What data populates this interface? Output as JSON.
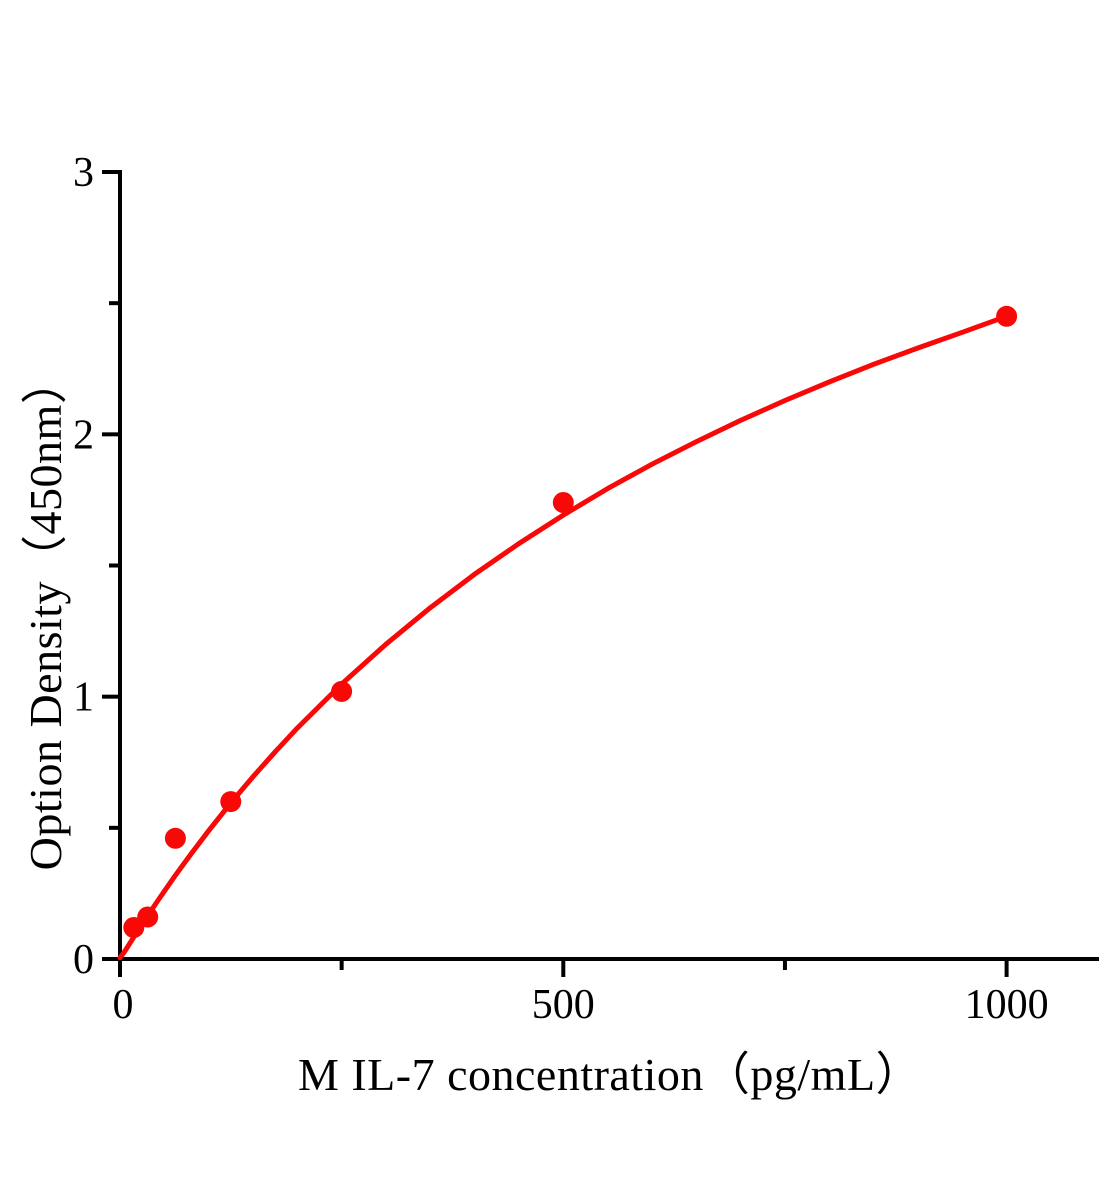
{
  "figure": {
    "background": "#ffffff",
    "text_color": "#000000"
  },
  "chart_data": {
    "type": "line",
    "subtype": "elisa-standard-curve-with-scatter-markers",
    "title": "",
    "xlabel": "M IL-7 concentration（pg/mL）",
    "ylabel": "Option Density（450nm）",
    "xlim": [
      0,
      1104
    ],
    "ylim": [
      0,
      3
    ],
    "grid": false,
    "legend": false,
    "axis_color": "#000000",
    "accent_color": "#f90808",
    "x_major_ticks": [
      0,
      500,
      1000
    ],
    "x_tick_labels": [
      "0",
      "500",
      "1000"
    ],
    "x_minor_ticks": [
      250,
      750
    ],
    "y_major_ticks": [
      0,
      1,
      2,
      3
    ],
    "y_tick_labels": [
      "0",
      "1",
      "2",
      "3"
    ],
    "y_minor_ticks": [
      0.5,
      1.5,
      2.5
    ],
    "series": [
      {
        "name": "standard points",
        "type": "scatter",
        "color": "#f90808",
        "marker": "circle",
        "marker_radius": 10.5,
        "points": [
          [
            15.6,
            0.12
          ],
          [
            31.2,
            0.16
          ],
          [
            62.5,
            0.46
          ],
          [
            125,
            0.6
          ],
          [
            250,
            1.02
          ],
          [
            500,
            1.74
          ],
          [
            1000,
            2.45
          ]
        ]
      },
      {
        "name": "fitted curve",
        "type": "line",
        "color": "#f90808",
        "stroke_width": 5,
        "points": [
          [
            0,
            0.005
          ],
          [
            5,
            0.027
          ],
          [
            10,
            0.054
          ],
          [
            20,
            0.107
          ],
          [
            30,
            0.159
          ],
          [
            45,
            0.234
          ],
          [
            62.5,
            0.319
          ],
          [
            80,
            0.4
          ],
          [
            100,
            0.489
          ],
          [
            125,
            0.595
          ],
          [
            150,
            0.695
          ],
          [
            175,
            0.79
          ],
          [
            200,
            0.88
          ],
          [
            250,
            1.048
          ],
          [
            300,
            1.2
          ],
          [
            350,
            1.339
          ],
          [
            400,
            1.467
          ],
          [
            450,
            1.584
          ],
          [
            500,
            1.692
          ],
          [
            550,
            1.793
          ],
          [
            600,
            1.886
          ],
          [
            650,
            1.972
          ],
          [
            700,
            2.053
          ],
          [
            750,
            2.129
          ],
          [
            800,
            2.2
          ],
          [
            850,
            2.267
          ],
          [
            900,
            2.329
          ],
          [
            950,
            2.389
          ],
          [
            1000,
            2.45
          ]
        ]
      }
    ]
  }
}
